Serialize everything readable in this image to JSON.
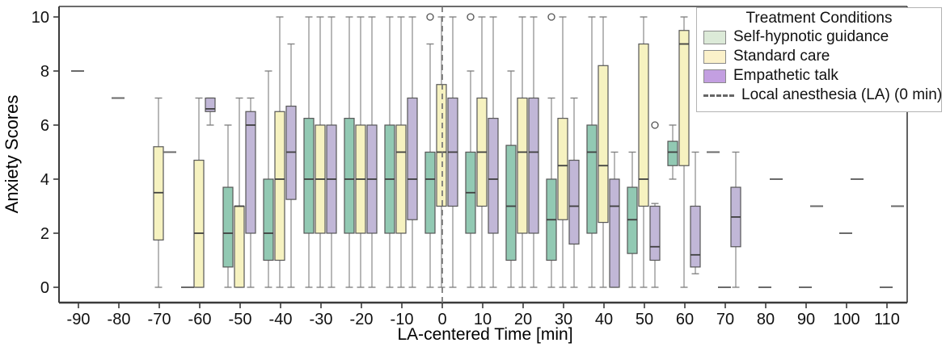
{
  "figure": {
    "ylabel": "Anxiety Scores",
    "xlabel": "LA-centered Time [min]",
    "y_ticks": [
      0,
      2,
      4,
      6,
      8,
      10
    ],
    "x_ticks": [
      -90,
      -80,
      -70,
      -60,
      -50,
      -40,
      -30,
      -20,
      -10,
      0,
      10,
      20,
      30,
      40,
      50,
      60,
      70,
      80,
      90,
      100,
      110
    ]
  },
  "legend": {
    "title": "Treatment Conditions",
    "items": [
      {
        "label": "Self-hypnotic guidance",
        "type": "patch",
        "fill": "#dcead8"
      },
      {
        "label": "Standard care",
        "type": "patch",
        "fill": "#fbf1ca"
      },
      {
        "label": "Empathetic talk",
        "type": "patch",
        "fill": "#c39fe1"
      },
      {
        "label": "Local anesthesia (LA) (0 min)",
        "type": "dashed-line",
        "stroke": "#666666"
      }
    ]
  },
  "chart_data": {
    "type": "boxplot",
    "title": "",
    "xlabel": "LA-centered Time [min]",
    "ylabel": "Anxiety Scores",
    "x_categories": [
      -90,
      -80,
      -70,
      -60,
      -50,
      -40,
      -30,
      -20,
      -10,
      0,
      10,
      20,
      30,
      40,
      50,
      60,
      70,
      80,
      90,
      100,
      110
    ],
    "ylim": [
      0,
      10
    ],
    "grid": false,
    "legend_position": "top-right",
    "reference_line": {
      "x": 0,
      "style": "dashed",
      "color": "#757575",
      "label": "Local anesthesia (LA) (0 min)"
    },
    "series": [
      {
        "name": "Self-hypnotic guidance",
        "fill": "#92c9b3",
        "boxes": [
          {
            "t": -60,
            "flat": 0
          },
          {
            "t": -50,
            "lo": 0,
            "q1": 0.75,
            "med": 2,
            "q3": 3.7,
            "hi": 6
          },
          {
            "t": -40,
            "lo": 0,
            "q1": 1,
            "med": 2,
            "q3": 4,
            "hi": 8
          },
          {
            "t": -30,
            "lo": 0,
            "q1": 2,
            "med": 4,
            "q3": 6.25,
            "hi": 10
          },
          {
            "t": -20,
            "lo": 0,
            "q1": 2,
            "med": 4,
            "q3": 6.25,
            "hi": 10
          },
          {
            "t": -10,
            "lo": 0,
            "q1": 2,
            "med": 4,
            "q3": 6,
            "hi": 10
          },
          {
            "t": 0,
            "lo": 0,
            "q1": 2,
            "med": 4,
            "q3": 5,
            "hi": 9,
            "out": [
              10
            ]
          },
          {
            "t": 10,
            "lo": 0,
            "q1": 2,
            "med": 3.5,
            "q3": 5,
            "hi": 8,
            "out": [
              10
            ]
          },
          {
            "t": 20,
            "lo": 0,
            "q1": 1,
            "med": 3,
            "q3": 5.25,
            "hi": 8
          },
          {
            "t": 30,
            "lo": 0,
            "q1": 1,
            "med": 2.5,
            "q3": 4,
            "hi": 7,
            "out": [
              10
            ]
          },
          {
            "t": 40,
            "lo": 0,
            "q1": 2,
            "med": 5,
            "q3": 6,
            "hi": 10
          },
          {
            "t": 50,
            "lo": 0,
            "q1": 1.25,
            "med": 2.5,
            "q3": 3.7,
            "hi": 5
          },
          {
            "t": 60,
            "lo": 4,
            "q1": 4.5,
            "med": 5,
            "q3": 5.4,
            "hi": 6
          },
          {
            "t": 70,
            "flat": 5
          }
        ]
      },
      {
        "name": "Standard care",
        "fill": "#f6f2c0",
        "boxes": [
          {
            "t": -90,
            "flat": 8
          },
          {
            "t": -80,
            "flat": 7
          },
          {
            "t": -70,
            "lo": 0,
            "q1": 1.75,
            "med": 3.5,
            "q3": 5.2,
            "hi": 7
          },
          {
            "t": -60,
            "lo": 0,
            "q1": 0,
            "med": 2,
            "q3": 4.7,
            "hi": 7
          },
          {
            "t": -50,
            "lo": 0,
            "q1": 0,
            "med": 3,
            "q3": 3,
            "hi": 7
          },
          {
            "t": -40,
            "lo": 0,
            "q1": 1,
            "med": 4,
            "q3": 6.5,
            "hi": 10
          },
          {
            "t": -30,
            "lo": 0,
            "q1": 2,
            "med": 4,
            "q3": 6,
            "hi": 10
          },
          {
            "t": -20,
            "lo": 0,
            "q1": 2,
            "med": 4,
            "q3": 6,
            "hi": 10
          },
          {
            "t": -10,
            "lo": 0,
            "q1": 2,
            "med": 5,
            "q3": 6,
            "hi": 10
          },
          {
            "t": 0,
            "lo": 0,
            "q1": 3,
            "med": 5,
            "q3": 7.5,
            "hi": 10
          },
          {
            "t": 10,
            "lo": 0,
            "q1": 3,
            "med": 5,
            "q3": 7,
            "hi": 10
          },
          {
            "t": 20,
            "lo": 0,
            "q1": 2,
            "med": 5,
            "q3": 7,
            "hi": 10
          },
          {
            "t": 30,
            "lo": 0,
            "q1": 2.5,
            "med": 4.5,
            "q3": 6.25,
            "hi": 10
          },
          {
            "t": 40,
            "lo": 0,
            "q1": 2.4,
            "med": 4.5,
            "q3": 8.2,
            "hi": 10
          },
          {
            "t": 50,
            "lo": 0,
            "q1": 3,
            "med": 4,
            "q3": 9,
            "hi": 10
          },
          {
            "t": 60,
            "lo": 0,
            "q1": 4.5,
            "med": 9,
            "q3": 9.5,
            "hi": 10
          },
          {
            "t": 70,
            "flat": 0
          },
          {
            "t": 80,
            "flat": 0
          },
          {
            "t": 90,
            "flat": 0
          },
          {
            "t": 100,
            "flat": 2
          },
          {
            "t": 110,
            "flat": 0
          }
        ]
      },
      {
        "name": "Empathetic talk",
        "fill": "#c1b7d7",
        "boxes": [
          {
            "t": -70,
            "flat": 5
          },
          {
            "t": -60,
            "lo": 6,
            "q1": 6.5,
            "med": 6.6,
            "q3": 7,
            "hi": 7
          },
          {
            "t": -50,
            "lo": 0,
            "q1": 2,
            "med": 6,
            "q3": 6.5,
            "hi": 7
          },
          {
            "t": -40,
            "lo": 0,
            "q1": 3.25,
            "med": 5,
            "q3": 6.7,
            "hi": 9
          },
          {
            "t": -30,
            "lo": 0,
            "q1": 2,
            "med": 4,
            "q3": 6,
            "hi": 10
          },
          {
            "t": -20,
            "lo": 0,
            "q1": 2,
            "med": 4,
            "q3": 6,
            "hi": 10
          },
          {
            "t": -10,
            "lo": 0,
            "q1": 2.5,
            "med": 4,
            "q3": 7,
            "hi": 10
          },
          {
            "t": 0,
            "lo": 0,
            "q1": 3,
            "med": 5,
            "q3": 7,
            "hi": 10
          },
          {
            "t": 10,
            "lo": 0,
            "q1": 2,
            "med": 4,
            "q3": 6.25,
            "hi": 10
          },
          {
            "t": 20,
            "lo": 0,
            "q1": 2,
            "med": 5,
            "q3": 7,
            "hi": 10
          },
          {
            "t": 30,
            "lo": 0,
            "q1": 1.6,
            "med": 3,
            "q3": 4.7,
            "hi": 7
          },
          {
            "t": 40,
            "lo": 0,
            "q1": 0,
            "med": 3,
            "q3": 4,
            "hi": 5
          },
          {
            "t": 50,
            "lo": 0,
            "q1": 1,
            "med": 1.5,
            "q3": 3,
            "hi": 3.1,
            "out": [
              6
            ]
          },
          {
            "t": 60,
            "lo": 0.5,
            "q1": 0.75,
            "med": 1.2,
            "q3": 3,
            "hi": 5
          },
          {
            "t": 70,
            "lo": 0,
            "q1": 1.5,
            "med": 2.6,
            "q3": 3.7,
            "hi": 5
          },
          {
            "t": 80,
            "flat": 4
          },
          {
            "t": 90,
            "flat": 3
          },
          {
            "t": 100,
            "flat": 4
          },
          {
            "t": 110,
            "flat": 3
          }
        ]
      }
    ]
  },
  "colors": {
    "spine": "#3a3a3a",
    "whisker": "#7d7d7d",
    "box_border": "#565656",
    "median": "#3f3f3f",
    "flat_mark": "#6a6a6a",
    "outlier": "#555555",
    "tick_label": "#111111"
  }
}
